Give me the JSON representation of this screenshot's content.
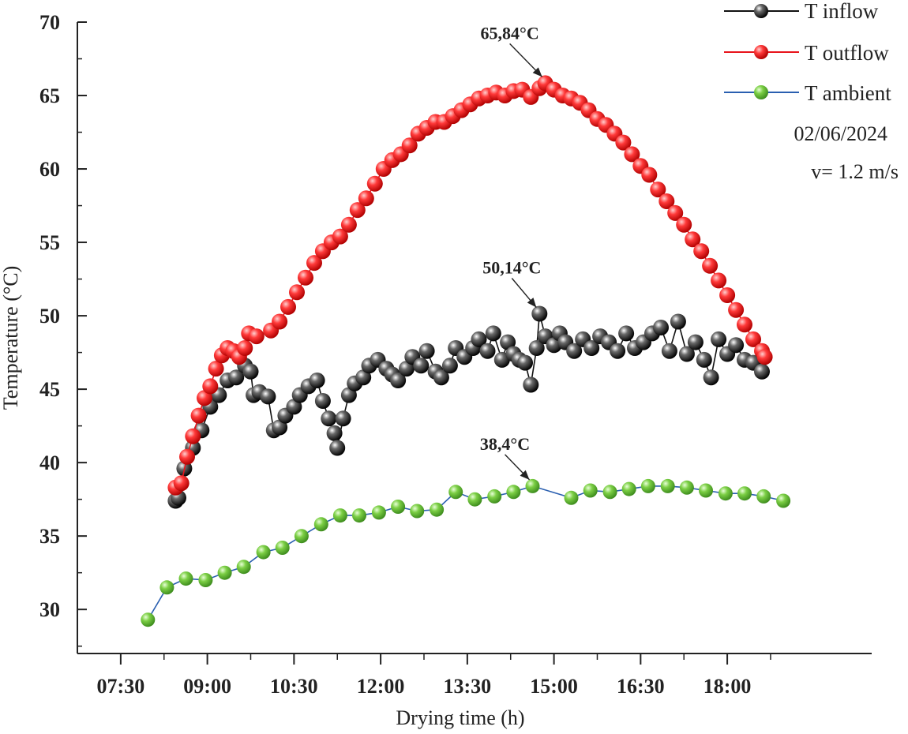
{
  "chart_data": {
    "type": "scatter",
    "title": "",
    "xlabel": "Drying time (h)",
    "ylabel": "Temperature (°C)",
    "xlim": [
      6.75,
      20.5
    ],
    "ylim": [
      27,
      70
    ],
    "x_ticks": [
      7.5,
      9.0,
      10.5,
      12.0,
      13.5,
      15.0,
      16.5,
      18.0
    ],
    "x_tick_labels": [
      "07:30",
      "09:00",
      "10:30",
      "12:00",
      "13:30",
      "15:00",
      "16:30",
      "18:00"
    ],
    "y_ticks": [
      30,
      35,
      40,
      45,
      50,
      55,
      60,
      65,
      70
    ],
    "y_tick_labels": [
      "30",
      "35",
      "40",
      "45",
      "50",
      "55",
      "60",
      "65",
      "70"
    ],
    "legend_position": "top-right",
    "series": [
      {
        "name": "T inflow",
        "color": "#111111",
        "line_color": "#111111",
        "points": [
          [
            8.45,
            37.4
          ],
          [
            8.5,
            37.6
          ],
          [
            8.6,
            39.6
          ],
          [
            8.75,
            41.0
          ],
          [
            8.9,
            42.2
          ],
          [
            9.05,
            43.8
          ],
          [
            9.2,
            44.6
          ],
          [
            9.35,
            45.6
          ],
          [
            9.5,
            45.8
          ],
          [
            9.65,
            46.6
          ],
          [
            9.75,
            46.2
          ],
          [
            9.8,
            44.6
          ],
          [
            9.9,
            44.8
          ],
          [
            10.05,
            44.5
          ],
          [
            10.15,
            42.2
          ],
          [
            10.25,
            42.4
          ],
          [
            10.35,
            43.2
          ],
          [
            10.5,
            43.8
          ],
          [
            10.6,
            44.6
          ],
          [
            10.75,
            45.2
          ],
          [
            10.9,
            45.6
          ],
          [
            11.0,
            44.2
          ],
          [
            11.1,
            43.0
          ],
          [
            11.2,
            42.0
          ],
          [
            11.25,
            41.0
          ],
          [
            11.35,
            43.0
          ],
          [
            11.45,
            44.6
          ],
          [
            11.55,
            45.4
          ],
          [
            11.7,
            45.8
          ],
          [
            11.8,
            46.6
          ],
          [
            11.95,
            47.0
          ],
          [
            12.1,
            46.4
          ],
          [
            12.2,
            46.0
          ],
          [
            12.3,
            45.6
          ],
          [
            12.45,
            46.4
          ],
          [
            12.55,
            47.2
          ],
          [
            12.7,
            46.6
          ],
          [
            12.8,
            47.6
          ],
          [
            12.95,
            46.2
          ],
          [
            13.05,
            45.8
          ],
          [
            13.2,
            46.6
          ],
          [
            13.3,
            47.8
          ],
          [
            13.45,
            47.2
          ],
          [
            13.6,
            47.8
          ],
          [
            13.7,
            48.4
          ],
          [
            13.85,
            47.6
          ],
          [
            13.95,
            48.8
          ],
          [
            14.1,
            47.0
          ],
          [
            14.2,
            48.2
          ],
          [
            14.3,
            47.4
          ],
          [
            14.4,
            47.0
          ],
          [
            14.5,
            46.8
          ],
          [
            14.6,
            45.3
          ],
          [
            14.7,
            47.8
          ],
          [
            14.75,
            50.14
          ],
          [
            14.85,
            48.6
          ],
          [
            15.0,
            48.0
          ],
          [
            15.1,
            48.8
          ],
          [
            15.2,
            48.2
          ],
          [
            15.35,
            47.6
          ],
          [
            15.5,
            48.4
          ],
          [
            15.65,
            47.8
          ],
          [
            15.8,
            48.6
          ],
          [
            15.95,
            48.2
          ],
          [
            16.1,
            47.6
          ],
          [
            16.25,
            48.8
          ],
          [
            16.4,
            47.8
          ],
          [
            16.55,
            48.2
          ],
          [
            16.7,
            48.8
          ],
          [
            16.85,
            49.2
          ],
          [
            17.0,
            47.6
          ],
          [
            17.15,
            49.6
          ],
          [
            17.3,
            47.4
          ],
          [
            17.45,
            48.2
          ],
          [
            17.6,
            47.0
          ],
          [
            17.72,
            45.8
          ],
          [
            17.85,
            48.4
          ],
          [
            18.0,
            47.4
          ],
          [
            18.15,
            48.0
          ],
          [
            18.3,
            47.0
          ],
          [
            18.45,
            46.8
          ],
          [
            18.6,
            46.2
          ]
        ]
      },
      {
        "name": "T outflow",
        "color": "#e8141b",
        "line_color": "#e8141b",
        "points": [
          [
            8.45,
            38.3
          ],
          [
            8.55,
            38.6
          ],
          [
            8.65,
            40.4
          ],
          [
            8.75,
            41.8
          ],
          [
            8.85,
            43.2
          ],
          [
            8.95,
            44.4
          ],
          [
            9.05,
            45.2
          ],
          [
            9.15,
            46.4
          ],
          [
            9.25,
            47.3
          ],
          [
            9.35,
            47.8
          ],
          [
            9.45,
            47.6
          ],
          [
            9.55,
            47.2
          ],
          [
            9.65,
            47.8
          ],
          [
            9.72,
            48.8
          ],
          [
            9.85,
            48.6
          ],
          [
            10.1,
            49.0
          ],
          [
            10.25,
            49.6
          ],
          [
            10.4,
            50.6
          ],
          [
            10.55,
            51.6
          ],
          [
            10.7,
            52.6
          ],
          [
            10.85,
            53.6
          ],
          [
            11.0,
            54.4
          ],
          [
            11.15,
            55.0
          ],
          [
            11.3,
            55.4
          ],
          [
            11.45,
            56.2
          ],
          [
            11.6,
            57.2
          ],
          [
            11.75,
            58.0
          ],
          [
            11.9,
            59.0
          ],
          [
            12.05,
            60.0
          ],
          [
            12.2,
            60.6
          ],
          [
            12.35,
            61.0
          ],
          [
            12.5,
            61.6
          ],
          [
            12.65,
            62.4
          ],
          [
            12.8,
            62.8
          ],
          [
            12.95,
            63.2
          ],
          [
            13.1,
            63.2
          ],
          [
            13.25,
            63.6
          ],
          [
            13.4,
            64.0
          ],
          [
            13.55,
            64.4
          ],
          [
            13.7,
            64.8
          ],
          [
            13.85,
            65.0
          ],
          [
            14.0,
            65.2
          ],
          [
            14.15,
            65.0
          ],
          [
            14.3,
            65.3
          ],
          [
            14.45,
            65.4
          ],
          [
            14.6,
            64.9
          ],
          [
            14.75,
            65.5
          ],
          [
            14.85,
            65.84
          ],
          [
            15.0,
            65.4
          ],
          [
            15.15,
            65.0
          ],
          [
            15.3,
            64.8
          ],
          [
            15.45,
            64.5
          ],
          [
            15.6,
            64.0
          ],
          [
            15.75,
            63.4
          ],
          [
            15.9,
            63.0
          ],
          [
            16.05,
            62.4
          ],
          [
            16.2,
            61.8
          ],
          [
            16.35,
            61.0
          ],
          [
            16.5,
            60.2
          ],
          [
            16.65,
            59.6
          ],
          [
            16.8,
            58.6
          ],
          [
            16.95,
            57.8
          ],
          [
            17.1,
            57.0
          ],
          [
            17.25,
            56.2
          ],
          [
            17.4,
            55.2
          ],
          [
            17.55,
            54.4
          ],
          [
            17.7,
            53.4
          ],
          [
            17.85,
            52.4
          ],
          [
            18.0,
            51.4
          ],
          [
            18.15,
            50.4
          ],
          [
            18.3,
            49.4
          ],
          [
            18.45,
            48.4
          ],
          [
            18.6,
            47.6
          ],
          [
            18.65,
            47.2
          ]
        ]
      },
      {
        "name": "T ambient",
        "color": "#6fc43a",
        "line_color": "#2a5fb0",
        "points": [
          [
            7.97,
            29.3
          ],
          [
            8.3,
            31.5
          ],
          [
            8.63,
            32.1
          ],
          [
            8.97,
            32.0
          ],
          [
            9.3,
            32.5
          ],
          [
            9.63,
            32.9
          ],
          [
            9.97,
            33.9
          ],
          [
            10.3,
            34.2
          ],
          [
            10.63,
            35.0
          ],
          [
            10.97,
            35.8
          ],
          [
            11.3,
            36.4
          ],
          [
            11.63,
            36.4
          ],
          [
            11.97,
            36.6
          ],
          [
            12.3,
            37.0
          ],
          [
            12.63,
            36.7
          ],
          [
            12.97,
            36.8
          ],
          [
            13.3,
            38.0
          ],
          [
            13.63,
            37.5
          ],
          [
            13.97,
            37.7
          ],
          [
            14.3,
            38.0
          ],
          [
            14.63,
            38.4
          ],
          [
            15.3,
            37.6
          ],
          [
            15.63,
            38.1
          ],
          [
            15.97,
            38.0
          ],
          [
            16.3,
            38.2
          ],
          [
            16.63,
            38.4
          ],
          [
            16.97,
            38.4
          ],
          [
            17.3,
            38.3
          ],
          [
            17.63,
            38.1
          ],
          [
            17.97,
            37.9
          ],
          [
            18.3,
            37.9
          ],
          [
            18.63,
            37.7
          ],
          [
            18.97,
            37.4
          ]
        ]
      }
    ],
    "annotations": [
      {
        "text": "65,84°C",
        "x": 14.85,
        "y": 65.84
      },
      {
        "text": "50,14°C",
        "x": 14.75,
        "y": 50.14
      },
      {
        "text": "38,4°C",
        "x": 14.63,
        "y": 38.4
      }
    ],
    "notes": {
      "date": "02/06/2024",
      "velocity": "v= 1.2 m/s"
    }
  }
}
